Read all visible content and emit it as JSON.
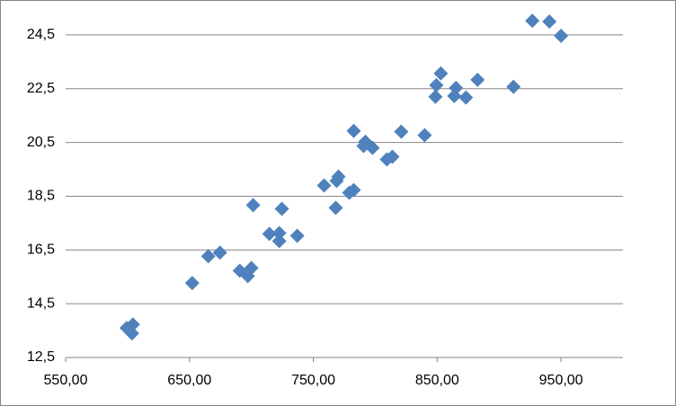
{
  "chart_data": {
    "type": "scatter",
    "x": [
      926.8,
      940.6,
      950,
      852.9,
      882.6,
      849.3,
      865.2,
      911.6,
      848.6,
      863.8,
      873.2,
      782.6,
      821,
      839.9,
      792,
      790.6,
      797.8,
      809.4,
      813.8,
      770.3,
      768.8,
      758.7,
      782.6,
      779,
      768.1,
      701.4,
      724.6,
      714.5,
      722.5,
      737,
      722.5,
      674.6,
      665.2,
      690.6,
      700,
      697.1,
      652.2,
      599.3,
      604.3,
      603.6
    ],
    "series": [
      {
        "color": "#4f81bd",
        "values": [
          25.03,
          25.0,
          24.47,
          23.07,
          22.83,
          22.63,
          22.53,
          22.57,
          22.2,
          22.23,
          22.17,
          20.93,
          20.9,
          20.77,
          20.53,
          20.37,
          20.3,
          19.87,
          19.97,
          19.23,
          19.07,
          18.9,
          18.73,
          18.63,
          18.07,
          18.17,
          18.03,
          17.1,
          17.13,
          17.03,
          16.83,
          16.4,
          16.27,
          15.73,
          15.83,
          15.53,
          15.27,
          13.6,
          13.73,
          13.4
        ]
      }
    ],
    "xlim": [
      550,
      1000
    ],
    "xticks": [
      {
        "value": 550,
        "label": "550,00"
      },
      {
        "value": 650,
        "label": "650,00"
      },
      {
        "value": 750,
        "label": "750,00"
      },
      {
        "value": 850,
        "label": "850,00"
      },
      {
        "value": 950,
        "label": "950,00"
      }
    ],
    "ylim": [
      12.5,
      25.5
    ],
    "yticks": [
      {
        "value": 12.5,
        "label": "12,5"
      },
      {
        "value": 14.5,
        "label": "14,5"
      },
      {
        "value": 16.5,
        "label": "16,5"
      },
      {
        "value": 18.5,
        "label": "18,5"
      },
      {
        "value": 20.5,
        "label": "20,5"
      },
      {
        "value": 22.5,
        "label": "22,5"
      },
      {
        "value": 24.5,
        "label": "24,5"
      }
    ],
    "grid": true
  }
}
